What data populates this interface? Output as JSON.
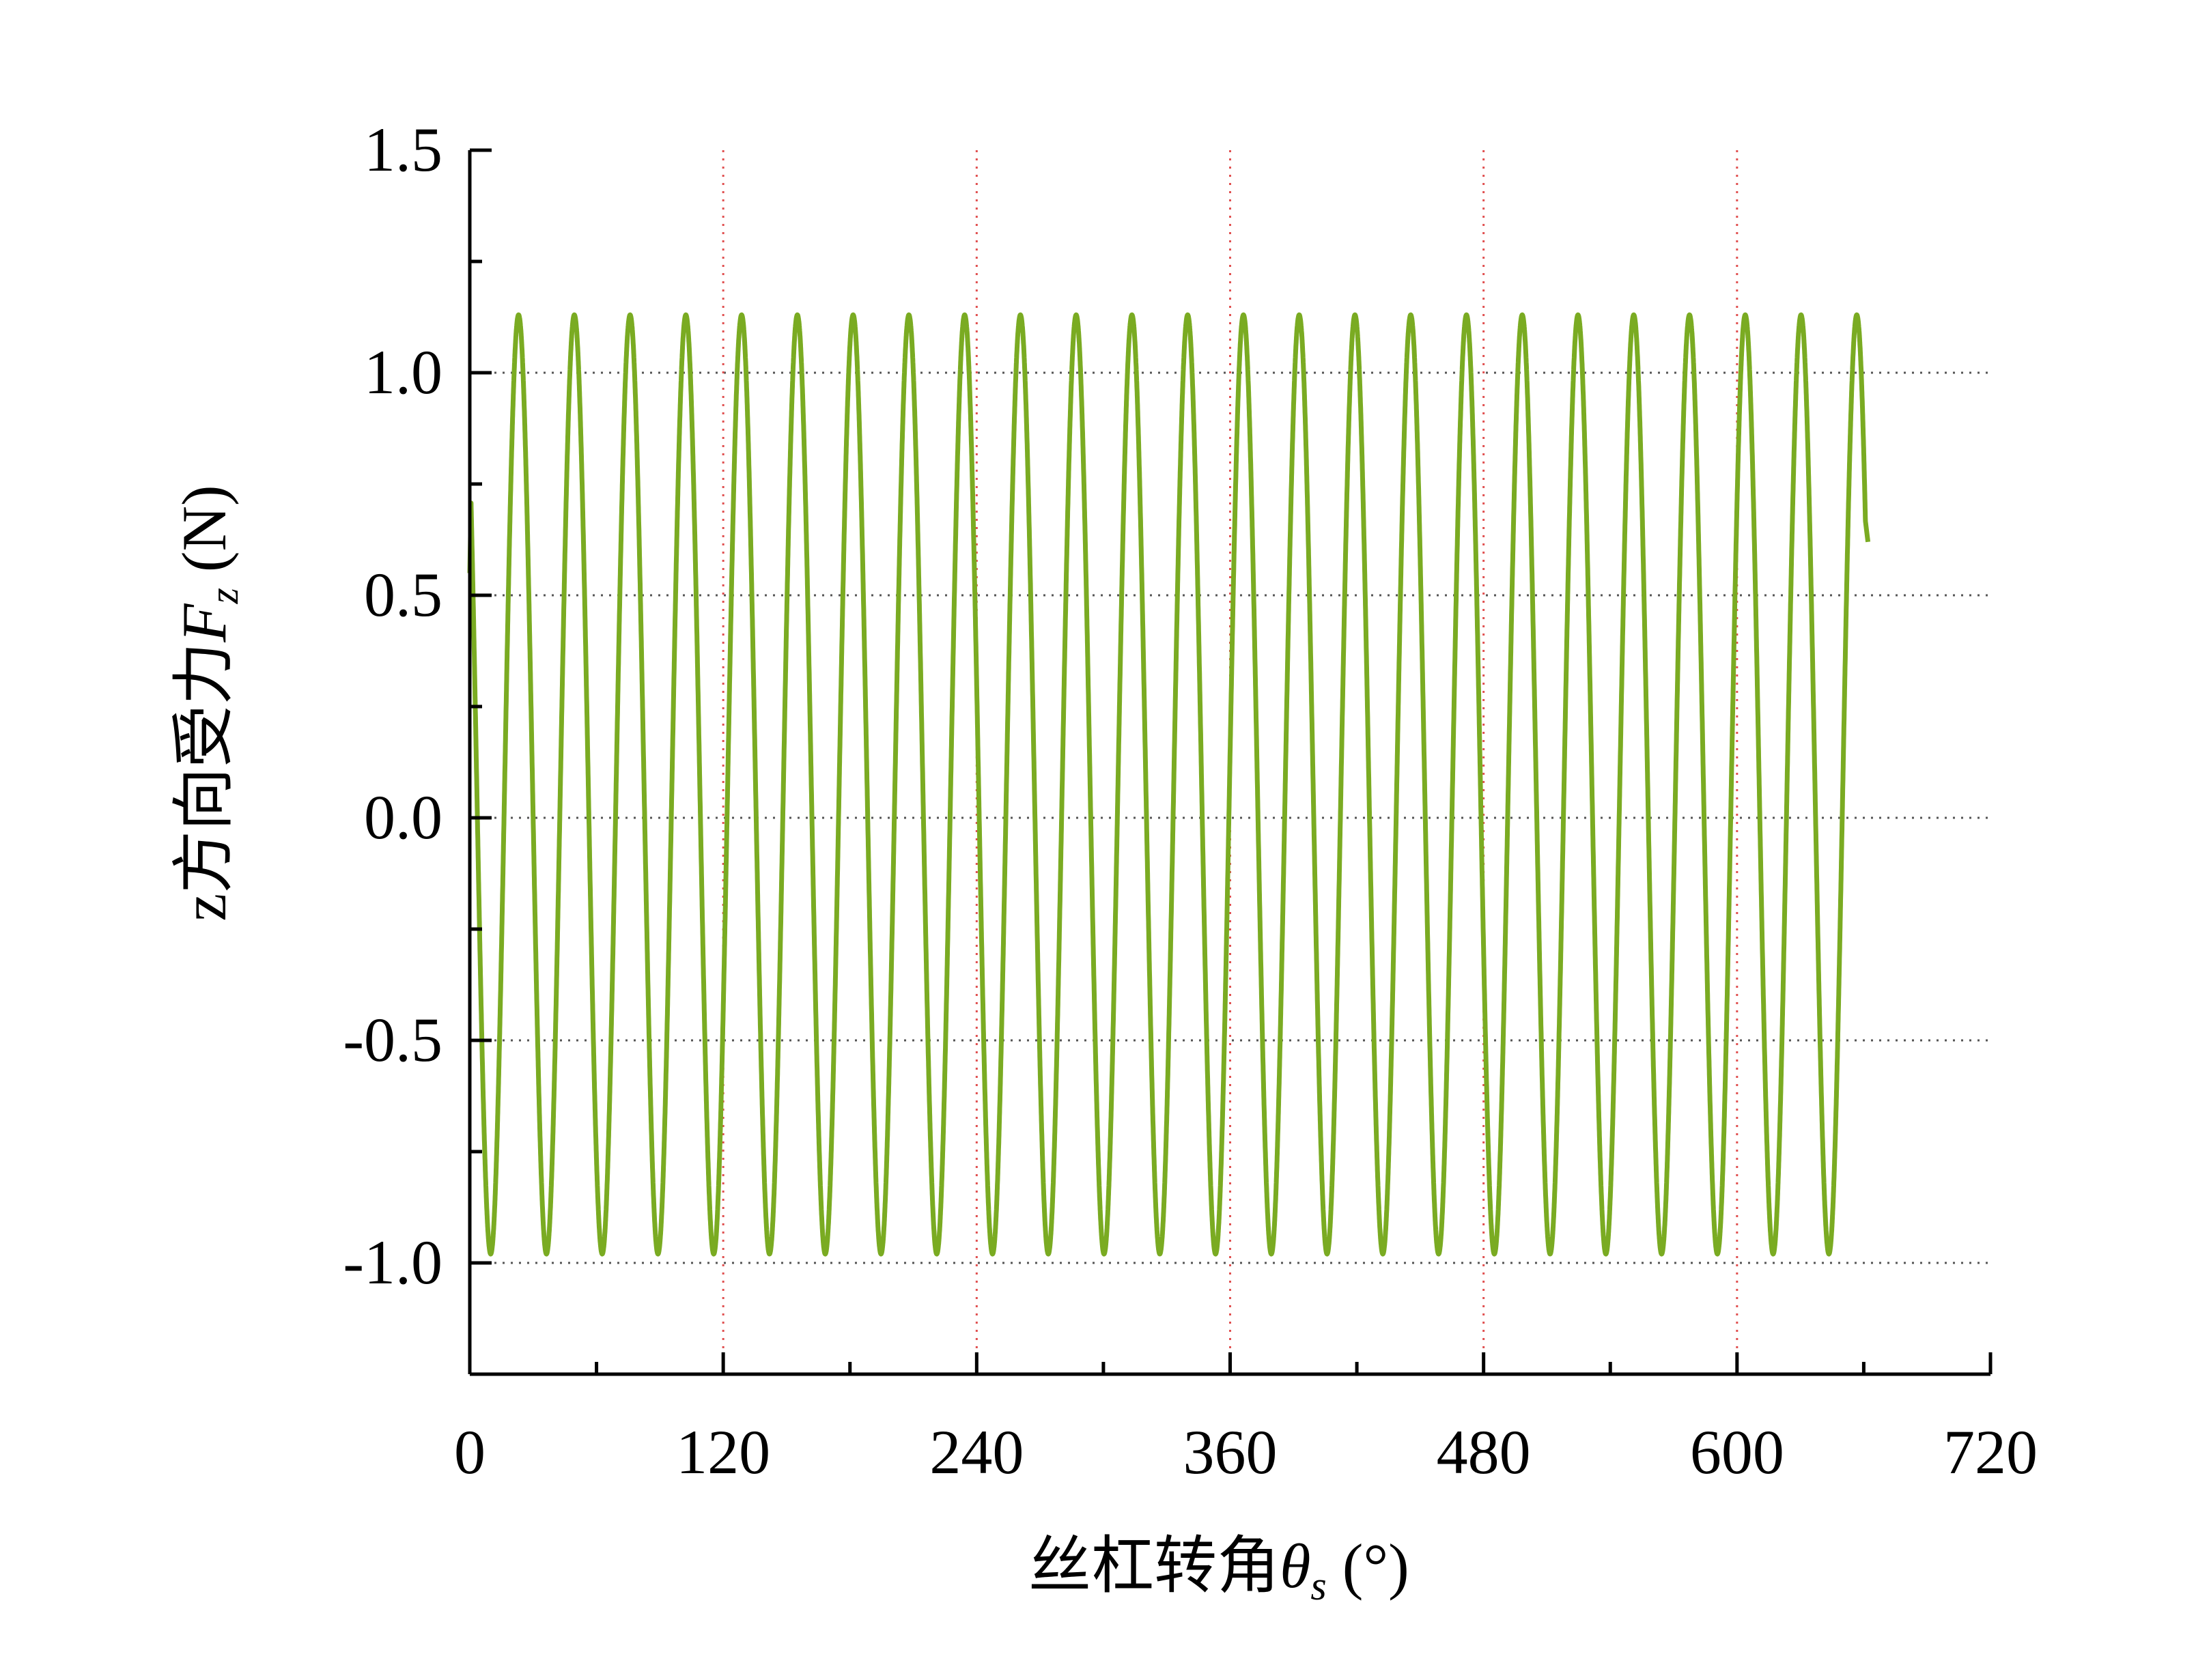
{
  "chart_data": {
    "type": "line",
    "title": "",
    "xlabel": {
      "prefix": "丝杠转角",
      "symbol": "θ",
      "subscript": "s",
      "unit": " (°)"
    },
    "ylabel": {
      "prefix": "z方向受力",
      "symbol": "F",
      "subscript": "z",
      "unit": " (N)"
    },
    "xlim": [
      0,
      720
    ],
    "ylim": [
      -1.25,
      1.5
    ],
    "xticks": [
      0,
      120,
      240,
      360,
      480,
      600,
      720
    ],
    "xtick_labels": [
      "0",
      "120",
      "240",
      "360",
      "480",
      "600",
      "720"
    ],
    "yticks": [
      -1.0,
      -0.5,
      0.0,
      0.5,
      1.0,
      1.5
    ],
    "ytick_labels": [
      "-1.0",
      "-0.5",
      "0.0",
      "0.5",
      "1.0",
      "1.5"
    ],
    "grid": {
      "horizontal": "dotted gray at y ticks",
      "vertical": "dotted red at x ticks"
    },
    "series": [
      {
        "color": "#7aab22",
        "model": "sine",
        "period_deg": 26.4,
        "amplitude": 1.055,
        "offset": 0.075,
        "x_start": 0,
        "x_end": 662,
        "y_start": 0.55,
        "y_end": 0.62,
        "peak": 1.13,
        "trough": -0.98
      }
    ]
  }
}
